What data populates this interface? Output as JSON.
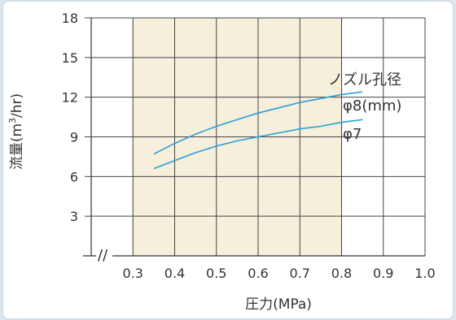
{
  "chart_data": {
    "type": "line",
    "xlabel": "圧力(MPa)",
    "ylabel_main": "流量",
    "ylabel_unit_pre": "(m",
    "ylabel_unit_sup": "3",
    "ylabel_unit_post": "/hr)",
    "xlim": [
      0.2,
      1.0
    ],
    "ylim": [
      0,
      18
    ],
    "x_ticks": [
      "0.3",
      "0.4",
      "0.5",
      "0.6",
      "0.7",
      "0.8",
      "0.9",
      "1.0"
    ],
    "y_ticks": [
      "3",
      "6",
      "9",
      "12",
      "15",
      "18"
    ],
    "axis_break": "//",
    "highlight_range": [
      0.3,
      0.8
    ],
    "highlight_color": "#f5efdc",
    "grid": true,
    "line_color": "#2a9fd6",
    "annotation": "ノズル孔径",
    "series": [
      {
        "name": "φ8(mm)",
        "x": [
          0.35,
          0.4,
          0.45,
          0.5,
          0.55,
          0.6,
          0.65,
          0.7,
          0.75,
          0.8,
          0.85
        ],
        "y": [
          7.7,
          8.5,
          9.2,
          9.8,
          10.3,
          10.8,
          11.2,
          11.6,
          11.9,
          12.2,
          12.4
        ]
      },
      {
        "name": "φ7",
        "x": [
          0.35,
          0.4,
          0.45,
          0.5,
          0.55,
          0.6,
          0.65,
          0.7,
          0.75,
          0.8,
          0.85
        ],
        "y": [
          6.6,
          7.2,
          7.8,
          8.3,
          8.7,
          9.0,
          9.3,
          9.6,
          9.8,
          10.1,
          10.3
        ]
      }
    ]
  }
}
